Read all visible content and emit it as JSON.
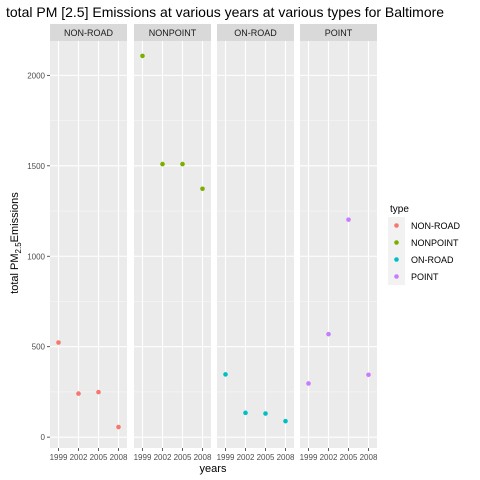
{
  "chart_data": {
    "type": "scatter",
    "title": "total PM [2.5] Emissions at various years at various types for Baltimore",
    "xlabel": "years",
    "ylabel_main": "total PM",
    "ylabel_sub": "2.5",
    "ylabel_end": "Emissions",
    "x": [
      1999,
      2002,
      2005,
      2008
    ],
    "x_tick_labels": [
      "1999",
      "2002",
      "2005",
      "2008"
    ],
    "ylim": [
      -60,
      2190
    ],
    "y_ticks": [
      0,
      500,
      1000,
      1500,
      2000
    ],
    "y_tick_labels": [
      "0",
      "500",
      "1000",
      "1500",
      "2000"
    ],
    "grid": true,
    "panel_background": "#ebebeb",
    "strip_background": "#d9d9d9",
    "legend": {
      "title": "type",
      "position": "right"
    },
    "facets": [
      {
        "name": "NON-ROAD",
        "color": "#f8766d",
        "values": [
          522.94,
          240.85,
          248.93,
          55.82
        ]
      },
      {
        "name": "NONPOINT",
        "color": "#7cae00",
        "values": [
          2107.63,
          1509.5,
          1509.5,
          1373.21
        ]
      },
      {
        "name": "ON-ROAD",
        "color": "#00bfc4",
        "values": [
          346.82,
          134.31,
          130.43,
          88.28
        ]
      },
      {
        "name": "POINT",
        "color": "#c77cff",
        "values": [
          296.8,
          569.26,
          1202.49,
          344.98
        ]
      }
    ]
  }
}
